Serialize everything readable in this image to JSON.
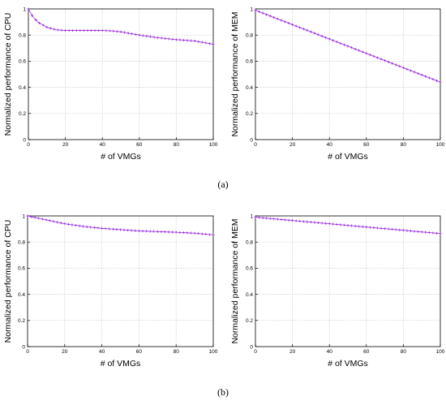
{
  "captions": {
    "a": "(a)",
    "b": "(b)"
  },
  "colors": {
    "series": "#9b30e0",
    "grid": "#c8c8c8",
    "axis": "#000000"
  },
  "chart_data": [
    {
      "type": "line",
      "xlabel": "# of VMGs",
      "ylabel": "Normalized performance of CPU",
      "xlim": [
        0,
        100
      ],
      "ylim": [
        0,
        1
      ],
      "xticks": [
        0,
        20,
        40,
        60,
        80,
        100
      ],
      "yticks": [
        0,
        0.2,
        0.4,
        0.6,
        0.8,
        1
      ],
      "ytick_labels": [
        "0",
        "0.2",
        "0.4",
        "0.6",
        "0.8",
        "1"
      ],
      "grid": true,
      "series": [
        {
          "x": [
            0,
            2,
            5,
            10,
            15,
            20,
            30,
            40,
            45,
            50,
            60,
            70,
            80,
            90,
            100
          ],
          "values": [
            1.0,
            0.95,
            0.9,
            0.86,
            0.84,
            0.835,
            0.835,
            0.835,
            0.832,
            0.825,
            0.8,
            0.78,
            0.765,
            0.755,
            0.73
          ]
        }
      ]
    },
    {
      "type": "line",
      "xlabel": "# of VMGs",
      "ylabel": "Normalized performance of MEM",
      "xlim": [
        0,
        100
      ],
      "ylim": [
        0,
        1
      ],
      "xticks": [
        0,
        20,
        40,
        60,
        80,
        100
      ],
      "yticks": [
        0,
        0.2,
        0.4,
        0.6,
        0.8,
        1
      ],
      "ytick_labels": [
        "0",
        "0.2",
        "0.4",
        "0.6",
        "0.8",
        "1"
      ],
      "grid": true,
      "series": [
        {
          "x": [
            0,
            20,
            40,
            60,
            80,
            100
          ],
          "values": [
            0.99,
            0.88,
            0.77,
            0.66,
            0.55,
            0.44
          ]
        }
      ]
    },
    {
      "type": "line",
      "xlabel": "# of VMGs",
      "ylabel": "Normalized performance of CPU",
      "xlim": [
        0,
        100
      ],
      "ylim": [
        0,
        1
      ],
      "xticks": [
        0,
        20,
        40,
        60,
        80,
        100
      ],
      "yticks": [
        0,
        0.2,
        0.4,
        0.6,
        0.8,
        1
      ],
      "ytick_labels": [
        "0",
        "0.2",
        "0.4",
        "0.6",
        "0.8",
        "1"
      ],
      "grid": true,
      "series": [
        {
          "x": [
            0,
            10,
            20,
            30,
            40,
            50,
            60,
            70,
            80,
            90,
            100
          ],
          "values": [
            1.0,
            0.97,
            0.94,
            0.92,
            0.905,
            0.895,
            0.885,
            0.88,
            0.875,
            0.868,
            0.855
          ]
        }
      ]
    },
    {
      "type": "line",
      "xlabel": "# of VMGs",
      "ylabel": "Normalized performance of MEM",
      "xlim": [
        0,
        100
      ],
      "ylim": [
        0,
        1
      ],
      "xticks": [
        0,
        20,
        40,
        60,
        80,
        100
      ],
      "yticks": [
        0,
        0.2,
        0.4,
        0.6,
        0.8,
        1
      ],
      "ytick_labels": [
        "0",
        "0.2",
        "0.4",
        "0.6",
        "0.8",
        "1"
      ],
      "grid": true,
      "series": [
        {
          "x": [
            0,
            20,
            40,
            60,
            80,
            100
          ],
          "values": [
            0.99,
            0.965,
            0.94,
            0.915,
            0.89,
            0.865
          ]
        }
      ]
    }
  ]
}
